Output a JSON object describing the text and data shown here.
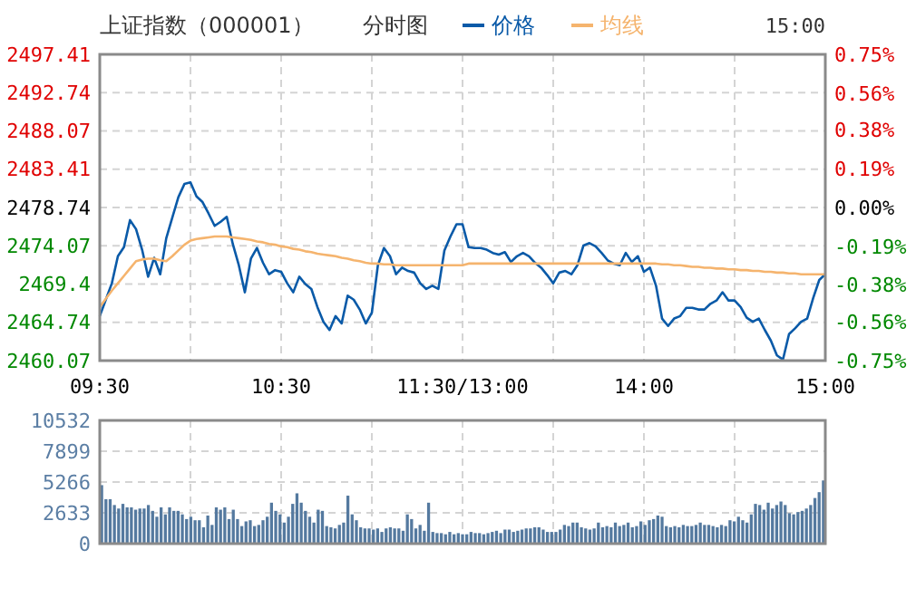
{
  "chart_data": [
    {
      "type": "line",
      "title": "上证指数（000001）",
      "subtitle": "分时图",
      "legend": "top",
      "grid": true,
      "annotations": [
        "15:00"
      ],
      "categories": [
        "09:30",
        null,
        null,
        null,
        null,
        null,
        null,
        null,
        null,
        null,
        null,
        null,
        null,
        null,
        null,
        null,
        null,
        null,
        null,
        null,
        null,
        null,
        null,
        null,
        null,
        null,
        null,
        null,
        null,
        null,
        "10:30",
        null,
        null,
        null,
        null,
        null,
        null,
        null,
        null,
        null,
        null,
        null,
        null,
        null,
        null,
        null,
        null,
        null,
        null,
        null,
        null,
        null,
        null,
        null,
        null,
        null,
        null,
        null,
        null,
        null,
        "11:30/13:00",
        null,
        null,
        null,
        null,
        null,
        null,
        null,
        null,
        null,
        null,
        null,
        null,
        null,
        null,
        null,
        null,
        null,
        null,
        null,
        null,
        null,
        null,
        null,
        null,
        null,
        null,
        null,
        null,
        null,
        "14:00",
        null,
        null,
        null,
        null,
        null,
        null,
        null,
        null,
        null,
        null,
        null,
        null,
        null,
        null,
        null,
        null,
        null,
        null,
        null,
        null,
        null,
        null,
        null,
        null,
        null,
        null,
        null,
        null,
        null,
        "15:00"
      ],
      "ylim": [
        2460.07,
        2497.41
      ],
      "yticks": [
        2460.07,
        2464.74,
        2469.4,
        2474.07,
        2478.74,
        2483.41,
        2488.07,
        2492.74,
        2497.41
      ],
      "y2lim": [
        -0.75,
        0.75
      ],
      "y2ticks": [
        {
          "value": -0.75,
          "label": "-0.75%"
        },
        {
          "value": -0.56,
          "label": "-0.56%"
        },
        {
          "value": -0.38,
          "label": "-0.38%"
        },
        {
          "value": -0.19,
          "label": "-0.19%"
        },
        {
          "value": 0,
          "label": "0.00%"
        },
        {
          "value": 0.19,
          "label": "0.19%"
        },
        {
          "value": 0.38,
          "label": "0.38%"
        },
        {
          "value": 0.56,
          "label": "0.56%"
        },
        {
          "value": 0.75,
          "label": "0.75%"
        }
      ],
      "series": [
        {
          "name": "价格",
          "color": "#0a5aa8",
          "values": [
            2465.5,
            2467.5,
            2469.5,
            2472.8,
            2473.9,
            2477.2,
            2476.1,
            2473.6,
            2470.3,
            2472.6,
            2470.6,
            2475.0,
            2477.5,
            2480.0,
            2481.6,
            2481.8,
            2480.1,
            2479.4,
            2478.0,
            2476.5,
            2477.0,
            2477.6,
            2474.3,
            2471.7,
            2468.4,
            2472.5,
            2473.8,
            2472.0,
            2470.6,
            2471.1,
            2470.9,
            2469.5,
            2468.4,
            2470.3,
            2469.4,
            2468.8,
            2466.6,
            2464.8,
            2463.8,
            2465.5,
            2464.6,
            2468.0,
            2467.5,
            2466.3,
            2464.6,
            2465.9,
            2471.7,
            2473.8,
            2472.8,
            2470.6,
            2471.4,
            2471.0,
            2470.8,
            2469.5,
            2468.8,
            2469.2,
            2468.8,
            2473.5,
            2475.2,
            2476.7,
            2476.7,
            2473.9,
            2473.8,
            2473.8,
            2473.6,
            2473.2,
            2473.0,
            2473.3,
            2472.1,
            2472.8,
            2473.2,
            2472.8,
            2472.0,
            2471.4,
            2470.5,
            2469.5,
            2470.8,
            2471.0,
            2470.6,
            2471.7,
            2474.1,
            2474.4,
            2474.0,
            2473.2,
            2472.3,
            2471.9,
            2471.7,
            2473.2,
            2472.1,
            2472.8,
            2470.9,
            2471.4,
            2469.2,
            2465.2,
            2464.3,
            2465.2,
            2465.5,
            2466.5,
            2466.5,
            2466.3,
            2466.3,
            2467.0,
            2467.4,
            2468.4,
            2467.4,
            2467.4,
            2466.6,
            2465.3,
            2464.8,
            2465.2,
            2463.8,
            2462.5,
            2460.7,
            2460.2,
            2463.3,
            2464.0,
            2464.8,
            2465.2,
            2467.7,
            2469.9,
            2470.6
          ]
        },
        {
          "name": "均线",
          "color": "#f5b46e",
          "values": [
            2466.6,
            2467.6,
            2468.6,
            2469.5,
            2470.4,
            2471.3,
            2472.2,
            2472.4,
            2472.5,
            2472.5,
            2472.3,
            2472.2,
            2472.8,
            2473.5,
            2474.2,
            2474.7,
            2474.9,
            2475.0,
            2475.1,
            2475.2,
            2475.2,
            2475.2,
            2475.1,
            2475.0,
            2474.9,
            2474.8,
            2474.6,
            2474.5,
            2474.3,
            2474.2,
            2474.0,
            2473.9,
            2473.7,
            2473.6,
            2473.4,
            2473.3,
            2473.1,
            2473.0,
            2472.9,
            2472.8,
            2472.6,
            2472.5,
            2472.3,
            2472.2,
            2472.0,
            2471.9,
            2471.9,
            2471.8,
            2471.8,
            2471.7,
            2471.7,
            2471.7,
            2471.7,
            2471.7,
            2471.7,
            2471.7,
            2471.7,
            2471.7,
            2471.7,
            2471.7,
            2471.7,
            2471.9,
            2471.9,
            2471.9,
            2471.9,
            2471.9,
            2471.9,
            2471.9,
            2471.9,
            2471.9,
            2471.9,
            2471.9,
            2471.9,
            2471.9,
            2471.9,
            2471.9,
            2471.9,
            2471.9,
            2471.9,
            2471.9,
            2471.9,
            2471.9,
            2471.9,
            2471.9,
            2471.9,
            2471.9,
            2471.9,
            2471.9,
            2471.9,
            2471.9,
            2471.9,
            2471.9,
            2471.9,
            2471.8,
            2471.8,
            2471.7,
            2471.7,
            2471.6,
            2471.5,
            2471.5,
            2471.4,
            2471.4,
            2471.3,
            2471.3,
            2471.2,
            2471.2,
            2471.1,
            2471.1,
            2471.0,
            2471.0,
            2470.9,
            2470.9,
            2470.8,
            2470.8,
            2470.7,
            2470.7,
            2470.6,
            2470.6,
            2470.6,
            2470.6,
            2470.6
          ]
        }
      ]
    },
    {
      "type": "bar",
      "color": "#54799f",
      "grid": true,
      "tick_labels": "y",
      "ylim": [
        0,
        10532
      ],
      "yticks": [
        0,
        2633,
        5266,
        7899,
        10532
      ],
      "categories": [
        null,
        null,
        null,
        null,
        null,
        null,
        null,
        null,
        null,
        null,
        null,
        null,
        null,
        null,
        null,
        null,
        null,
        null,
        null,
        null,
        null,
        null,
        null,
        null,
        null,
        null,
        null,
        null,
        null,
        null,
        null,
        null,
        null,
        null,
        null,
        null,
        null,
        null,
        null,
        null,
        null,
        null,
        null,
        null,
        null,
        null,
        null,
        null,
        null,
        null,
        null,
        null,
        null,
        null,
        null,
        null,
        null,
        null,
        null,
        null,
        null,
        null,
        null,
        null,
        null,
        null,
        null,
        null,
        null,
        null,
        null,
        null,
        null,
        null,
        null,
        null,
        null,
        null,
        null,
        null,
        null,
        null,
        null,
        null,
        null,
        null,
        null,
        null,
        null,
        null,
        null,
        null,
        null,
        null,
        null,
        null,
        null,
        null,
        null,
        null,
        null,
        null,
        null,
        null,
        null,
        null,
        null,
        null,
        null,
        null,
        null,
        null,
        null,
        null,
        null,
        null,
        null,
        null,
        null,
        null,
        null,
        null,
        null,
        null,
        null,
        null,
        null,
        null,
        null,
        null,
        null,
        null,
        null,
        null,
        null,
        null,
        null,
        null,
        null,
        null,
        null,
        null,
        null,
        null,
        null,
        null,
        null,
        null,
        null,
        null,
        null,
        null,
        null,
        null,
        null,
        null,
        null,
        null,
        null,
        null,
        null,
        null,
        null,
        null,
        null,
        null,
        null,
        null,
        null,
        null,
        null
      ],
      "values": [
        5000,
        3800,
        3800,
        3300,
        3000,
        3400,
        3100,
        3100,
        2900,
        3000,
        3000,
        3300,
        2800,
        2300,
        3100,
        2500,
        3100,
        2800,
        2800,
        2500,
        2100,
        2300,
        2000,
        2000,
        1400,
        2400,
        1600,
        3100,
        2900,
        3100,
        2100,
        2900,
        2100,
        1500,
        1900,
        2000,
        1500,
        1600,
        2000,
        2300,
        3500,
        2800,
        2500,
        1800,
        2300,
        3400,
        4300,
        3500,
        2800,
        2300,
        1800,
        2900,
        2800,
        1500,
        1400,
        1300,
        1600,
        1800,
        4100,
        2500,
        2000,
        1400,
        1300,
        1300,
        1200,
        1300,
        1000,
        1300,
        1400,
        1300,
        1300,
        1100,
        2500,
        2100,
        1300,
        1600,
        1100,
        3500,
        1000,
        900,
        900,
        800,
        1000,
        800,
        900,
        800,
        800,
        1000,
        900,
        900,
        800,
        900,
        1000,
        1100,
        900,
        1200,
        1200,
        1000,
        1100,
        1200,
        1300,
        1300,
        1400,
        1400,
        1200,
        1000,
        1000,
        1000,
        1200,
        1600,
        1500,
        1800,
        1800,
        1400,
        1300,
        1200,
        1300,
        1800,
        1400,
        1500,
        1400,
        1800,
        1500,
        1600,
        1800,
        1400,
        1500,
        1900,
        1600,
        2000,
        2100,
        2400,
        2300,
        1500,
        1400,
        1500,
        1400,
        1600,
        1500,
        1500,
        1600,
        1800,
        1600,
        1600,
        1500,
        1400,
        1600,
        1500,
        2000,
        1900,
        2300,
        2000,
        1800,
        2500,
        3400,
        3300,
        2900,
        3500,
        3000,
        3300,
        3600,
        3300,
        2600,
        2500,
        2700,
        2800,
        3000,
        3300,
        3900,
        4400,
        5400
      ]
    }
  ]
}
